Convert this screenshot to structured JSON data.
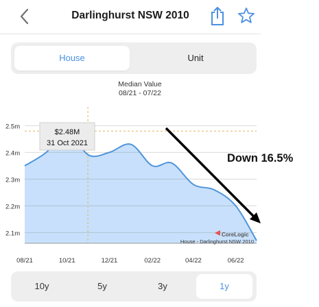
{
  "header": {
    "title": "Darlinghurst NSW 2010"
  },
  "property_tabs": {
    "house": "House",
    "unit": "Unit",
    "selected": "House"
  },
  "chart_data": {
    "type": "area",
    "title": "Median Value",
    "subtitle": "08/21 - 07/22",
    "x_ticks": [
      "08/21",
      "10/21",
      "12/21",
      "02/22",
      "04/22",
      "06/22"
    ],
    "y_ticks": [
      "2.5m",
      "2.4m",
      "2.3m",
      "2.2m",
      "2.1m"
    ],
    "ylim": [
      2.06,
      2.56
    ],
    "xlim": [
      "2021-08",
      "2022-07"
    ],
    "x": [
      "2021-08",
      "2021-09",
      "2021-10",
      "2021-11",
      "2021-12",
      "2022-01",
      "2022-02",
      "2022-03",
      "2022-04",
      "2022-05",
      "2022-06",
      "2022-07"
    ],
    "values": [
      2.35,
      2.4,
      2.48,
      2.39,
      2.4,
      2.43,
      2.35,
      2.36,
      2.28,
      2.26,
      2.2,
      2.07
    ],
    "highlight_point": {
      "x": "2021-10-31",
      "y": 2.48
    },
    "tooltip": {
      "value": "$2.48M",
      "date": "31 Oct 2021"
    },
    "annotation": "Down 16.5%",
    "source": "House - Darlinghurst NSW 2010",
    "logo": "CoreLogic",
    "fill_color": "#c8e0fb",
    "line_color": "#4e94da",
    "grid": true
  },
  "periods": {
    "items": [
      "10y",
      "5y",
      "3y",
      "1y"
    ],
    "selected": "1y"
  }
}
